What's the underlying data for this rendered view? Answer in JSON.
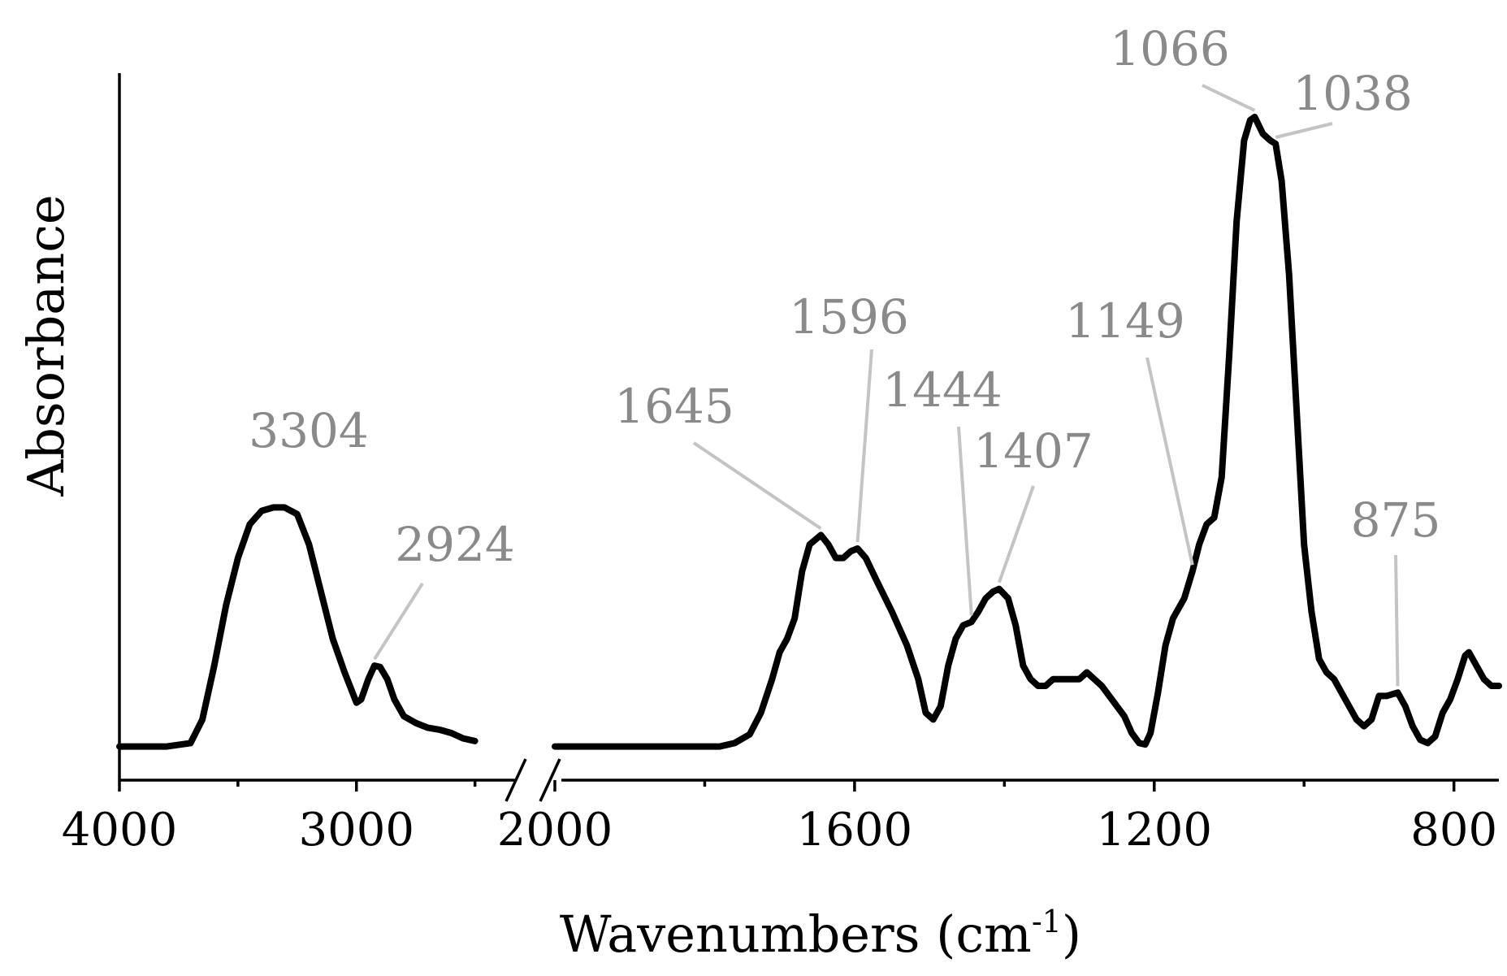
{
  "chart_data": {
    "type": "line",
    "xlabel": "Wavenumbers (cm",
    "xlabel_sup": "-1",
    "xlabel_close": ")",
    "ylabel": "Absorbance",
    "x_reversed": true,
    "x_break": [
      2300,
      2000
    ],
    "xlim": [
      4000,
      740
    ],
    "ylim": [
      -0.05,
      1.0
    ],
    "grid": false,
    "x_ticks": [
      {
        "value": 4000,
        "label": "4000"
      },
      {
        "value": 3000,
        "label": "3000"
      },
      {
        "value": 2000,
        "label": "2000"
      },
      {
        "value": 1600,
        "label": "1600"
      },
      {
        "value": 1200,
        "label": "1200"
      },
      {
        "value": 800,
        "label": "800"
      }
    ],
    "x_minor_ticks": [
      3500,
      2500,
      1800,
      1400,
      1000
    ],
    "series": [
      {
        "segments": [
          [
            [
              4000,
              0.0
            ],
            [
              3800,
              0.0
            ],
            [
              3700,
              0.005
            ],
            [
              3650,
              0.04
            ],
            [
              3600,
              0.12
            ],
            [
              3550,
              0.21
            ],
            [
              3500,
              0.28
            ],
            [
              3450,
              0.33
            ],
            [
              3400,
              0.35
            ],
            [
              3350,
              0.355
            ],
            [
              3304,
              0.355
            ],
            [
              3250,
              0.345
            ],
            [
              3200,
              0.3
            ],
            [
              3150,
              0.23
            ],
            [
              3100,
              0.16
            ],
            [
              3050,
              0.11
            ],
            [
              3000,
              0.065
            ],
            [
              2980,
              0.07
            ],
            [
              2950,
              0.1
            ],
            [
              2924,
              0.12
            ],
            [
              2900,
              0.118
            ],
            [
              2870,
              0.1
            ],
            [
              2840,
              0.07
            ],
            [
              2800,
              0.045
            ],
            [
              2750,
              0.035
            ],
            [
              2700,
              0.028
            ],
            [
              2650,
              0.025
            ],
            [
              2600,
              0.02
            ],
            [
              2550,
              0.012
            ],
            [
              2500,
              0.008
            ]
          ],
          [
            [
              2000,
              0.0
            ],
            [
              1850,
              0.0
            ],
            [
              1780,
              0.0
            ],
            [
              1760,
              0.005
            ],
            [
              1740,
              0.018
            ],
            [
              1725,
              0.05
            ],
            [
              1710,
              0.1
            ],
            [
              1700,
              0.14
            ],
            [
              1690,
              0.16
            ],
            [
              1680,
              0.19
            ],
            [
              1670,
              0.26
            ],
            [
              1660,
              0.3
            ],
            [
              1645,
              0.314
            ],
            [
              1635,
              0.3
            ],
            [
              1625,
              0.28
            ],
            [
              1615,
              0.28
            ],
            [
              1605,
              0.29
            ],
            [
              1596,
              0.294
            ],
            [
              1585,
              0.28
            ],
            [
              1570,
              0.245
            ],
            [
              1550,
              0.2
            ],
            [
              1530,
              0.15
            ],
            [
              1515,
              0.1
            ],
            [
              1505,
              0.05
            ],
            [
              1495,
              0.04
            ],
            [
              1485,
              0.06
            ],
            [
              1475,
              0.12
            ],
            [
              1465,
              0.16
            ],
            [
              1455,
              0.18
            ],
            [
              1444,
              0.185
            ],
            [
              1435,
              0.2
            ],
            [
              1425,
              0.22
            ],
            [
              1415,
              0.23
            ],
            [
              1407,
              0.234
            ],
            [
              1395,
              0.22
            ],
            [
              1385,
              0.18
            ],
            [
              1375,
              0.12
            ],
            [
              1365,
              0.1
            ],
            [
              1355,
              0.09
            ],
            [
              1345,
              0.09
            ],
            [
              1335,
              0.1
            ],
            [
              1320,
              0.1
            ],
            [
              1310,
              0.1
            ],
            [
              1300,
              0.1
            ],
            [
              1290,
              0.11
            ],
            [
              1280,
              0.1
            ],
            [
              1270,
              0.09
            ],
            [
              1260,
              0.075
            ],
            [
              1250,
              0.06
            ],
            [
              1240,
              0.045
            ],
            [
              1230,
              0.02
            ],
            [
              1220,
              0.005
            ],
            [
              1212,
              0.003
            ],
            [
              1205,
              0.02
            ],
            [
              1195,
              0.08
            ],
            [
              1185,
              0.15
            ],
            [
              1175,
              0.19
            ],
            [
              1160,
              0.22
            ],
            [
              1149,
              0.26
            ],
            [
              1140,
              0.3
            ],
            [
              1130,
              0.33
            ],
            [
              1120,
              0.34
            ],
            [
              1110,
              0.4
            ],
            [
              1100,
              0.58
            ],
            [
              1090,
              0.78
            ],
            [
              1080,
              0.9
            ],
            [
              1072,
              0.93
            ],
            [
              1066,
              0.935
            ],
            [
              1055,
              0.91
            ],
            [
              1045,
              0.9
            ],
            [
              1038,
              0.895
            ],
            [
              1030,
              0.84
            ],
            [
              1020,
              0.7
            ],
            [
              1010,
              0.5
            ],
            [
              1000,
              0.3
            ],
            [
              990,
              0.2
            ],
            [
              980,
              0.13
            ],
            [
              970,
              0.11
            ],
            [
              960,
              0.1
            ],
            [
              950,
              0.08
            ],
            [
              940,
              0.06
            ],
            [
              930,
              0.04
            ],
            [
              920,
              0.03
            ],
            [
              910,
              0.04
            ],
            [
              900,
              0.075
            ],
            [
              890,
              0.075
            ],
            [
              875,
              0.08
            ],
            [
              865,
              0.06
            ],
            [
              855,
              0.03
            ],
            [
              845,
              0.01
            ],
            [
              835,
              0.005
            ],
            [
              825,
              0.015
            ],
            [
              815,
              0.05
            ],
            [
              805,
              0.07
            ],
            [
              795,
              0.1
            ],
            [
              785,
              0.135
            ],
            [
              780,
              0.14
            ],
            [
              770,
              0.12
            ],
            [
              760,
              0.1
            ],
            [
              750,
              0.09
            ],
            [
              740,
              0.09
            ]
          ]
        ]
      }
    ],
    "annotations": [
      {
        "label": "3304",
        "x": 3304,
        "y": 0.355,
        "leader": false
      },
      {
        "label": "2924",
        "x": 2924,
        "y": 0.12,
        "leader": true
      },
      {
        "label": "1645",
        "x": 1645,
        "y": 0.314,
        "leader": true
      },
      {
        "label": "1596",
        "x": 1596,
        "y": 0.294,
        "leader": true
      },
      {
        "label": "1444",
        "x": 1444,
        "y": 0.185,
        "leader": true
      },
      {
        "label": "1407",
        "x": 1407,
        "y": 0.234,
        "leader": true
      },
      {
        "label": "1149",
        "x": 1149,
        "y": 0.26,
        "leader": true
      },
      {
        "label": "1066",
        "x": 1066,
        "y": 0.935,
        "leader": true
      },
      {
        "label": "1038",
        "x": 1038,
        "y": 0.895,
        "leader": true
      },
      {
        "label": "875",
        "x": 875,
        "y": 0.08,
        "leader": true
      }
    ]
  }
}
